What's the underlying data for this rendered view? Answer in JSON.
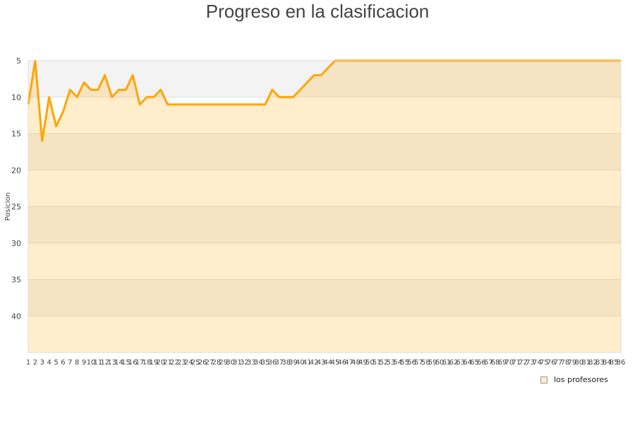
{
  "chart_data": {
    "type": "area",
    "title": "Progreso en la clasificacion",
    "ylabel": "Posicion",
    "xlabel": "",
    "ylim": [
      5,
      45
    ],
    "y_inverted": true,
    "y_ticks": [
      5,
      10,
      15,
      20,
      25,
      30,
      35,
      40
    ],
    "grid": true,
    "legend_position": "bottom-right",
    "x": [
      1,
      2,
      3,
      4,
      5,
      6,
      7,
      8,
      9,
      10,
      11,
      12,
      13,
      14,
      15,
      16,
      17,
      18,
      19,
      20,
      21,
      22,
      23,
      24,
      25,
      26,
      27,
      28,
      29,
      30,
      31,
      32,
      33,
      34,
      35,
      36,
      37,
      38,
      39,
      40,
      41,
      42,
      43,
      44,
      45,
      46,
      47,
      48,
      49,
      50,
      51,
      52,
      53,
      54,
      55,
      56,
      57,
      58,
      59,
      60,
      61,
      62,
      63,
      64,
      65,
      66,
      67,
      68,
      69,
      70,
      71,
      72,
      73,
      74,
      75,
      76,
      77,
      78,
      79,
      80,
      81,
      82,
      83,
      84,
      85,
      86
    ],
    "series": [
      {
        "name": "los profesores",
        "color": "#ffa500",
        "values": [
          11,
          5,
          16,
          10,
          14,
          12,
          9,
          10,
          8,
          9,
          9,
          7,
          10,
          9,
          9,
          7,
          11,
          10,
          10,
          9,
          11,
          11,
          11,
          11,
          11,
          11,
          11,
          11,
          11,
          11,
          11,
          11,
          11,
          11,
          11,
          9,
          10,
          10,
          10,
          9,
          8,
          7,
          7,
          6,
          5,
          5,
          5,
          5,
          5,
          5,
          5,
          5,
          5,
          5,
          5,
          5,
          5,
          5,
          5,
          5,
          5,
          5,
          5,
          5,
          5,
          5,
          5,
          5,
          5,
          5,
          5,
          5,
          5,
          5,
          5,
          5,
          5,
          5,
          5,
          5,
          5,
          5,
          5,
          5,
          5,
          5
        ]
      }
    ]
  }
}
